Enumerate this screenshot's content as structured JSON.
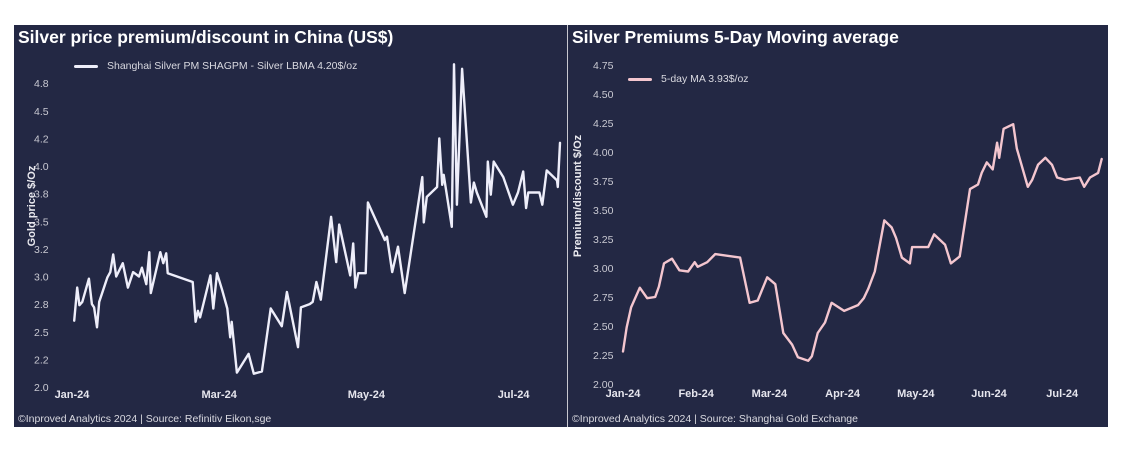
{
  "charts": {
    "left": {
      "footer": "©Inproved Analytics 2024 | Source: Refinitiv Eikon,sge"
    },
    "right": {
      "footer": "©Inproved Analytics 2024 | Source: Shanghai Gold Exchange"
    }
  },
  "chart_data": [
    {
      "type": "line",
      "title": "Silver price premium/discount in China (US$)",
      "xlabel": "",
      "ylabel": "Gold price $/Oz",
      "x_unit": "months since Jan-24",
      "xlim": [
        0,
        6.7
      ],
      "ylim": [
        2.0,
        4.95
      ],
      "y_ticks": [
        2.0,
        2.25,
        2.5,
        2.75,
        3.0,
        3.25,
        3.5,
        3.75,
        4.0,
        4.25,
        4.5,
        4.75
      ],
      "y_tick_labels": [
        "2.0",
        "2.2",
        "2.5",
        "2.8",
        "3.0",
        "3.2",
        "3.5",
        "3.8",
        "4.0",
        "4.2",
        "4.5",
        "4.8"
      ],
      "x_ticks": [
        0,
        2,
        4,
        6
      ],
      "x_tick_labels": [
        "Jan-24",
        "Mar-24",
        "May-24",
        "Jul-24"
      ],
      "grid": false,
      "legend_position": "top-center",
      "color": "#eeeefa",
      "series": [
        {
          "name": "Shanghai Silver PM SHAGPM - Silver LBMA 4.20$/oz",
          "x": [
            0.03,
            0.07,
            0.1,
            0.14,
            0.23,
            0.27,
            0.3,
            0.34,
            0.37,
            0.48,
            0.52,
            0.56,
            0.6,
            0.69,
            0.76,
            0.83,
            0.91,
            0.95,
            1.01,
            1.05,
            1.07,
            1.2,
            1.24,
            1.28,
            1.3,
            1.64,
            1.68,
            1.71,
            1.74,
            1.88,
            1.92,
            1.97,
            2.04,
            2.11,
            2.15,
            2.17,
            2.24,
            2.4,
            2.47,
            2.58,
            2.7,
            2.85,
            2.92,
            3.07,
            3.11,
            3.23,
            3.27,
            3.32,
            3.38,
            3.52,
            3.59,
            3.63,
            3.78,
            3.82,
            3.85,
            3.89,
            3.99,
            4.02,
            4.25,
            4.28,
            4.35,
            4.43,
            4.52,
            4.76,
            4.78,
            4.82,
            4.96,
            4.99,
            5.03,
            5.05,
            5.16,
            5.19,
            5.23,
            5.3,
            5.42,
            5.46,
            5.5,
            5.63,
            5.65,
            5.69,
            5.73,
            5.86,
            5.99,
            6.06,
            6.13,
            6.17,
            6.2,
            6.35,
            6.39,
            6.45,
            6.59,
            6.6,
            6.63
          ],
          "values": [
            2.6,
            2.9,
            2.74,
            2.77,
            2.98,
            2.75,
            2.72,
            2.54,
            2.77,
            2.99,
            3.04,
            3.2,
            3.0,
            3.12,
            2.9,
            3.04,
            3.0,
            3.08,
            2.93,
            3.22,
            2.85,
            3.22,
            3.12,
            3.21,
            3.03,
            2.95,
            2.59,
            2.69,
            2.63,
            3.01,
            2.71,
            3.03,
            2.88,
            2.71,
            2.45,
            2.59,
            2.13,
            2.3,
            2.12,
            2.14,
            2.71,
            2.55,
            2.86,
            2.36,
            2.72,
            2.75,
            2.77,
            2.95,
            2.79,
            3.54,
            3.13,
            3.47,
            3.01,
            3.3,
            2.9,
            3.03,
            3.03,
            3.67,
            3.33,
            3.36,
            3.04,
            3.27,
            2.85,
            3.9,
            3.49,
            3.72,
            3.81,
            4.25,
            3.83,
            3.92,
            3.45,
            4.92,
            3.65,
            4.88,
            3.67,
            3.85,
            3.76,
            3.54,
            4.04,
            3.74,
            4.04,
            3.9,
            3.65,
            3.76,
            3.95,
            3.62,
            3.76,
            3.76,
            3.65,
            3.96,
            3.87,
            3.81,
            4.21
          ]
        }
      ]
    },
    {
      "type": "line",
      "title": "Silver Premiums 5-Day Moving average",
      "xlabel": "",
      "ylabel": "Premium/discount $/Oz",
      "x_unit": "months since Jan-24",
      "xlim": [
        0,
        6.7
      ],
      "ylim": [
        2.0,
        4.75
      ],
      "y_ticks": [
        2.0,
        2.25,
        2.5,
        2.75,
        3.0,
        3.25,
        3.5,
        3.75,
        4.0,
        4.25,
        4.5,
        4.75
      ],
      "y_tick_labels": [
        "2.00",
        "2.25",
        "2.50",
        "2.75",
        "3.00",
        "3.25",
        "3.50",
        "3.75",
        "4.00",
        "4.25",
        "4.50",
        "4.75"
      ],
      "x_ticks": [
        0,
        1,
        2,
        3,
        4,
        5,
        6
      ],
      "x_tick_labels": [
        "Jan-24",
        "Feb-24",
        "Mar-24",
        "Apr-24",
        "May-24",
        "Jun-24",
        "Jul-24"
      ],
      "grid": false,
      "legend_position": "top-left",
      "color": "#f4c6cf",
      "series": [
        {
          "name": "5-day MA 3.93$/oz",
          "x": [
            0.0,
            0.05,
            0.11,
            0.23,
            0.33,
            0.44,
            0.49,
            0.56,
            0.67,
            0.77,
            0.89,
            0.98,
            1.02,
            1.15,
            1.26,
            1.6,
            1.73,
            1.84,
            1.97,
            2.08,
            2.19,
            2.31,
            2.39,
            2.53,
            2.58,
            2.66,
            2.76,
            2.85,
            3.02,
            3.21,
            3.29,
            3.35,
            3.44,
            3.57,
            3.67,
            3.73,
            3.81,
            3.92,
            3.95,
            4.17,
            4.25,
            4.4,
            4.48,
            4.6,
            4.74,
            4.85,
            4.9,
            4.97,
            5.05,
            5.11,
            5.14,
            5.2,
            5.33,
            5.38,
            5.53,
            5.59,
            5.67,
            5.77,
            5.86,
            5.93,
            6.04,
            6.24,
            6.3,
            6.38,
            6.49,
            6.54
          ],
          "values": [
            2.28,
            2.49,
            2.66,
            2.83,
            2.74,
            2.75,
            2.84,
            3.04,
            3.08,
            2.98,
            2.97,
            3.05,
            3.01,
            3.05,
            3.12,
            3.09,
            2.7,
            2.72,
            2.92,
            2.86,
            2.44,
            2.34,
            2.23,
            2.2,
            2.24,
            2.44,
            2.53,
            2.7,
            2.63,
            2.68,
            2.74,
            2.82,
            2.97,
            3.41,
            3.35,
            3.26,
            3.09,
            3.04,
            3.18,
            3.18,
            3.29,
            3.2,
            3.04,
            3.1,
            3.68,
            3.72,
            3.82,
            3.91,
            3.85,
            4.08,
            3.95,
            4.2,
            4.24,
            4.03,
            3.7,
            3.76,
            3.89,
            3.95,
            3.89,
            3.78,
            3.76,
            3.78,
            3.7,
            3.78,
            3.82,
            3.94
          ]
        }
      ]
    }
  ]
}
